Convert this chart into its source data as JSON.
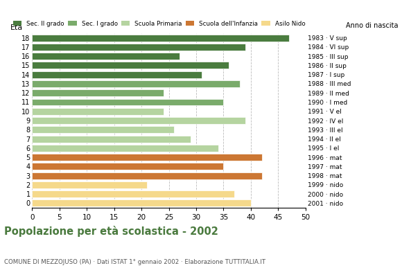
{
  "ages": [
    18,
    17,
    16,
    15,
    14,
    13,
    12,
    11,
    10,
    9,
    8,
    7,
    6,
    5,
    4,
    3,
    2,
    1,
    0
  ],
  "values": [
    47,
    39,
    27,
    36,
    31,
    38,
    24,
    35,
    24,
    39,
    26,
    29,
    34,
    42,
    35,
    42,
    21,
    37,
    40
  ],
  "right_labels": [
    "1983 · V sup",
    "1984 · VI sup",
    "1985 · III sup",
    "1986 · II sup",
    "1987 · I sup",
    "1988 · III med",
    "1989 · II med",
    "1990 · I med",
    "1991 · V el",
    "1992 · IV el",
    "1993 · III el",
    "1994 · II el",
    "1995 · I el",
    "1996 · mat",
    "1997 · mat",
    "1998 · mat",
    "1999 · nido",
    "2000 · nido",
    "2001 · nido"
  ],
  "colors": [
    "#4a7c3f",
    "#4a7c3f",
    "#4a7c3f",
    "#4a7c3f",
    "#4a7c3f",
    "#7aab6b",
    "#7aab6b",
    "#7aab6b",
    "#b5d4a0",
    "#b5d4a0",
    "#b5d4a0",
    "#b5d4a0",
    "#b5d4a0",
    "#cc7733",
    "#cc7733",
    "#cc7733",
    "#f5d98b",
    "#f5d98b",
    "#f5d98b"
  ],
  "legend_labels": [
    "Sec. II grado",
    "Sec. I grado",
    "Scuola Primaria",
    "Scuola dell'Infanzia",
    "Asilo Nido"
  ],
  "legend_colors": [
    "#4a7c3f",
    "#7aab6b",
    "#b5d4a0",
    "#cc7733",
    "#f5d98b"
  ],
  "title": "Popolazione per età scolastica - 2002",
  "subtitle": "COMUNE DI MEZZOJUSO (PA) · Dati ISTAT 1° gennaio 2002 · Elaborazione TUTTITALIA.IT",
  "ylabel_left": "Età",
  "ylabel_right": "Anno di nascita",
  "xlim": [
    0,
    50
  ],
  "xticks": [
    0,
    5,
    10,
    15,
    20,
    25,
    30,
    35,
    40,
    45,
    50
  ],
  "background_color": "#ffffff",
  "grid_color": "#bbbbbb"
}
